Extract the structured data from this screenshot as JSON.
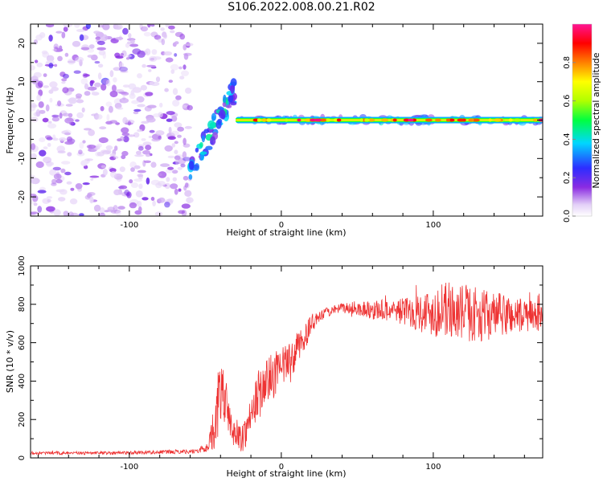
{
  "title": "S106.2022.008.00.21.R02",
  "colors": {
    "snr_line": "#ee3333",
    "noise": "#8a2be2",
    "axis": "#000000"
  },
  "chart_data": [
    {
      "type": "heatmap",
      "xlabel": "Height of straight line (km)",
      "ylabel": "Frequency (Hz)",
      "xlim": [
        -165,
        172
      ],
      "ylim": [
        -25,
        25
      ],
      "x_tick_labels": [
        "-100",
        "0",
        "100"
      ],
      "x_ticks": [
        -100,
        0,
        100
      ],
      "y_tick_labels": [
        "-20",
        "-10",
        "0",
        "10",
        "20"
      ],
      "y_ticks": [
        -20,
        -10,
        0,
        10,
        20
      ],
      "colorbar": {
        "label": "Normalized spectral amplitude",
        "range": [
          0,
          1
        ],
        "tick_labels": [
          "0.0",
          "0.2",
          "0.4",
          "0.6",
          "0.8"
        ],
        "ticks": [
          0,
          0.2,
          0.4,
          0.6,
          0.8
        ],
        "colormap": "rainbow (white-violet-blue-cyan-green-yellow-red-magenta)"
      },
      "regions": [
        {
          "description": "broadband noise",
          "x": [
            -165,
            -60
          ],
          "freq": [
            -25,
            25
          ],
          "amplitude": 0.15
        },
        {
          "description": "transition tail",
          "x": [
            -60,
            -30
          ],
          "freq_start": -13,
          "freq_end": 8,
          "amplitude": 0.35
        },
        {
          "description": "signal line",
          "x": [
            -30,
            172
          ],
          "freq": 0,
          "amplitude_range": [
            0.6,
            1.0
          ]
        }
      ]
    },
    {
      "type": "line",
      "xlabel": "Height of straight line (km)",
      "ylabel": "SNR (10 * v/v)",
      "xlim": [
        -165,
        172
      ],
      "ylim": [
        0,
        1000
      ],
      "x_tick_labels": [
        "-100",
        "0",
        "100"
      ],
      "x_ticks": [
        -100,
        0,
        100
      ],
      "y_tick_labels": [
        "0",
        "200",
        "400",
        "600",
        "800",
        "1000"
      ],
      "y_ticks": [
        0,
        200,
        400,
        600,
        800,
        1000
      ],
      "series": [
        {
          "envelope_x": [
            -165,
            -120,
            -80,
            -55,
            -48,
            -43,
            -40,
            -37,
            -33,
            -30,
            -25,
            -20,
            -15,
            -10,
            -5,
            0,
            5,
            10,
            15,
            20,
            25,
            30,
            40,
            50,
            60,
            70,
            80,
            90,
            100,
            110,
            120,
            130,
            140,
            150,
            160,
            172
          ],
          "envelope_y": [
            25,
            25,
            30,
            35,
            60,
            200,
            360,
            300,
            170,
            100,
            110,
            220,
            330,
            390,
            430,
            460,
            500,
            560,
            620,
            700,
            730,
            760,
            780,
            780,
            770,
            770,
            765,
            760,
            760,
            770,
            755,
            745,
            740,
            745,
            740,
            735
          ],
          "noise_amplitude": [
            8,
            8,
            10,
            12,
            30,
            150,
            200,
            130,
            80,
            60,
            80,
            110,
            130,
            130,
            120,
            110,
            100,
            90,
            70,
            50,
            30,
            25,
            25,
            40,
            50,
            60,
            70,
            100,
            130,
            150,
            150,
            140,
            120,
            110,
            90,
            70
          ]
        }
      ]
    }
  ]
}
